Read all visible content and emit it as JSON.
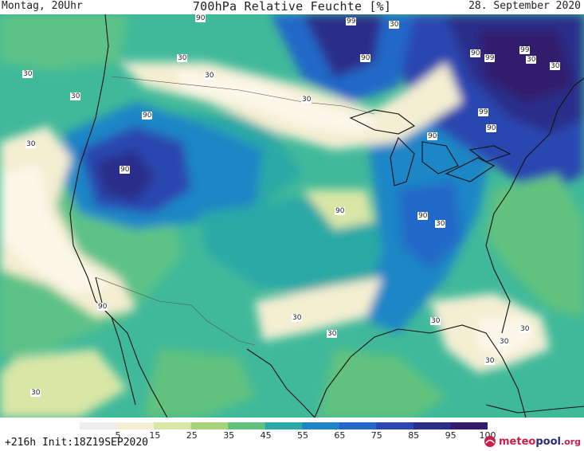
{
  "header": {
    "left": "Montag, 20Uhr",
    "title": "700hPa Relative Feuchte [%]",
    "right": "28. September 2020"
  },
  "map": {
    "labels": [
      "90",
      "99",
      "30",
      "90",
      "30",
      "90",
      "99",
      "99",
      "30",
      "30",
      "30",
      "30",
      "90",
      "99",
      "90",
      "90",
      "30",
      "90",
      "90",
      "30",
      "90",
      "90",
      "30",
      "30",
      "30",
      "30",
      "30",
      "30",
      "30",
      "30",
      "30"
    ]
  },
  "legend": {
    "ticks": [
      "5",
      "15",
      "25",
      "35",
      "45",
      "55",
      "65",
      "75",
      "85",
      "95",
      "100"
    ],
    "colors": [
      "#eeeeee",
      "#f4eed2",
      "#d8e6a6",
      "#a7d37a",
      "#62c27e",
      "#2ca9a6",
      "#1e86c6",
      "#2367c8",
      "#2b46b0",
      "#2a2e8a",
      "#321d6c"
    ]
  },
  "footer": {
    "run": "+216h Init:18Z19SEP2020",
    "logo_text_main": "meteo",
    "logo_text_bold": "pool",
    "logo_text_suffix": ".org"
  }
}
